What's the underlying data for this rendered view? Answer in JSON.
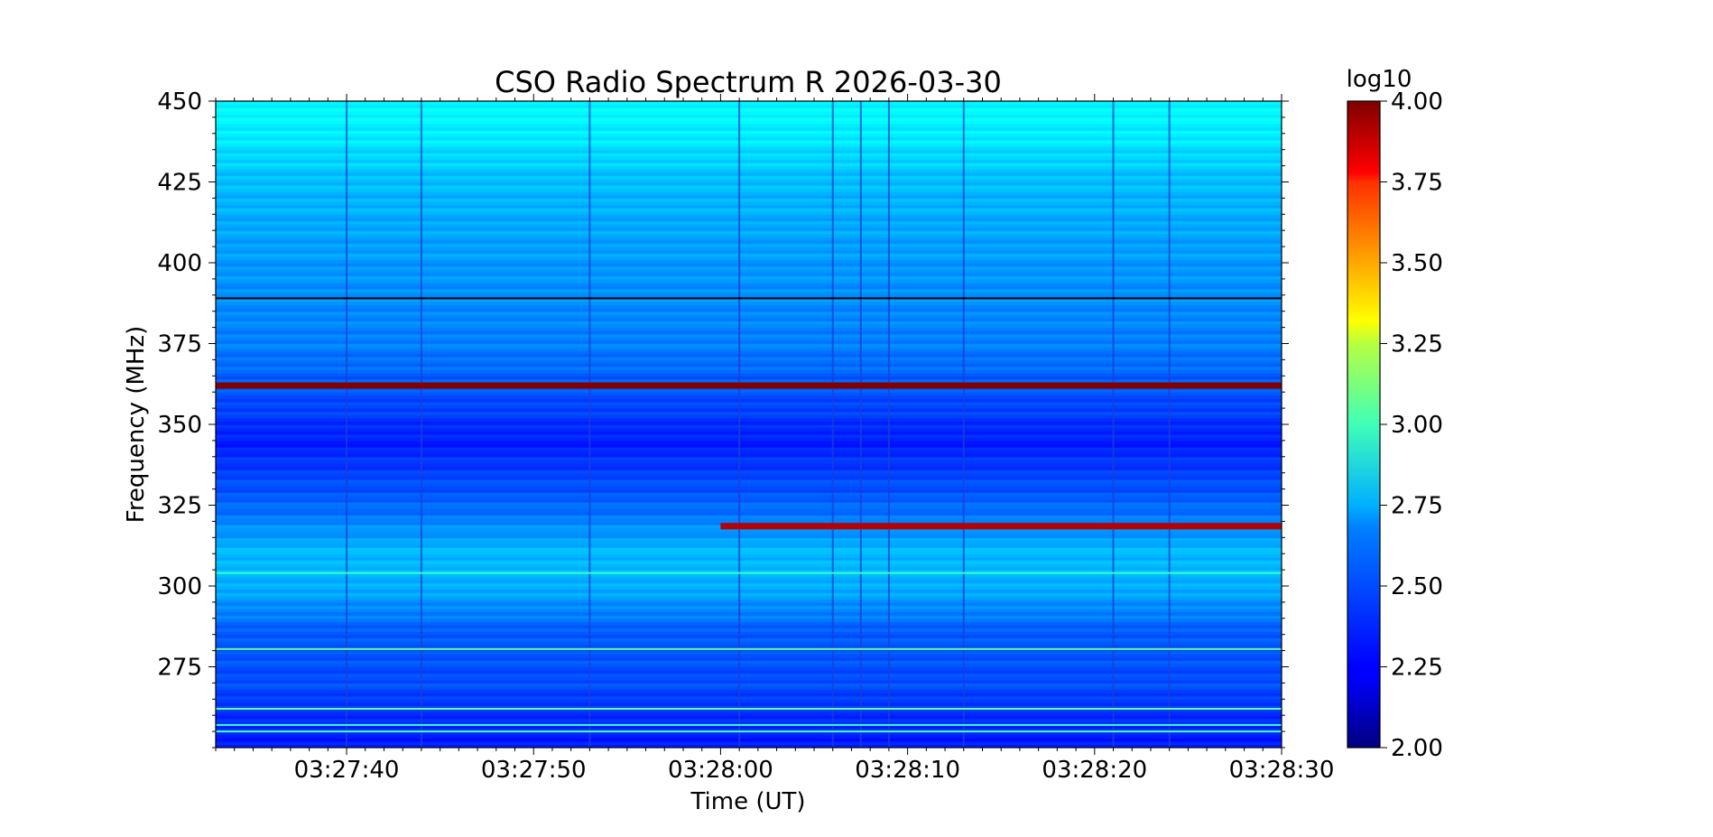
{
  "chart_data": {
    "type": "heatmap",
    "title": "CSO Radio Spectrum R 2026-03-30",
    "xlabel": "Time (UT)",
    "ylabel": "Frequency (MHz)",
    "x_tick_labels": [
      "03:27:40",
      "03:27:50",
      "03:28:00",
      "03:28:10",
      "03:28:20",
      "03:28:30"
    ],
    "x_tick_seconds": [
      40,
      50,
      60,
      70,
      80,
      90
    ],
    "xlim_seconds_after_03_27_00": [
      33,
      90
    ],
    "y_ticks": [
      275,
      300,
      325,
      350,
      375,
      400,
      425,
      450
    ],
    "ylim": [
      250,
      450
    ],
    "colorbar": {
      "label": "log10",
      "ticks": [
        "2.00",
        "2.25",
        "2.50",
        "2.75",
        "3.00",
        "3.25",
        "3.50",
        "3.75",
        "4.00"
      ],
      "range": [
        2.0,
        4.0
      ],
      "colormap": "jet"
    },
    "background_profile": [
      {
        "freq": 250,
        "value": 2.3
      },
      {
        "freq": 262,
        "value": 2.35
      },
      {
        "freq": 270,
        "value": 2.4
      },
      {
        "freq": 285,
        "value": 2.42
      },
      {
        "freq": 300,
        "value": 2.6
      },
      {
        "freq": 310,
        "value": 2.62
      },
      {
        "freq": 325,
        "value": 2.45
      },
      {
        "freq": 345,
        "value": 2.3
      },
      {
        "freq": 355,
        "value": 2.38
      },
      {
        "freq": 375,
        "value": 2.5
      },
      {
        "freq": 400,
        "value": 2.55
      },
      {
        "freq": 425,
        "value": 2.62
      },
      {
        "freq": 440,
        "value": 2.72
      },
      {
        "freq": 450,
        "value": 2.75
      }
    ],
    "horizontal_features": [
      {
        "freq": 362,
        "value": 4.0,
        "from_s": 33,
        "to_s": 90
      },
      {
        "freq": 389,
        "value": 1.0,
        "from_s": 33,
        "to_s": 90
      },
      {
        "freq": 318.5,
        "value": 3.9,
        "from_s": 60,
        "to_s": 90
      },
      {
        "freq": 304,
        "value": 2.85,
        "from_s": 33,
        "to_s": 90
      },
      {
        "freq": 280.5,
        "value": 2.95,
        "from_s": 33,
        "to_s": 90
      },
      {
        "freq": 262,
        "value": 2.95,
        "from_s": 33,
        "to_s": 90
      },
      {
        "freq": 257,
        "value": 2.85,
        "from_s": 33,
        "to_s": 90
      },
      {
        "freq": 255,
        "value": 2.9,
        "from_s": 33,
        "to_s": 90
      }
    ],
    "vertical_features_seconds": [
      40,
      44,
      53,
      61,
      66,
      67.5,
      69,
      73,
      81,
      84
    ]
  }
}
